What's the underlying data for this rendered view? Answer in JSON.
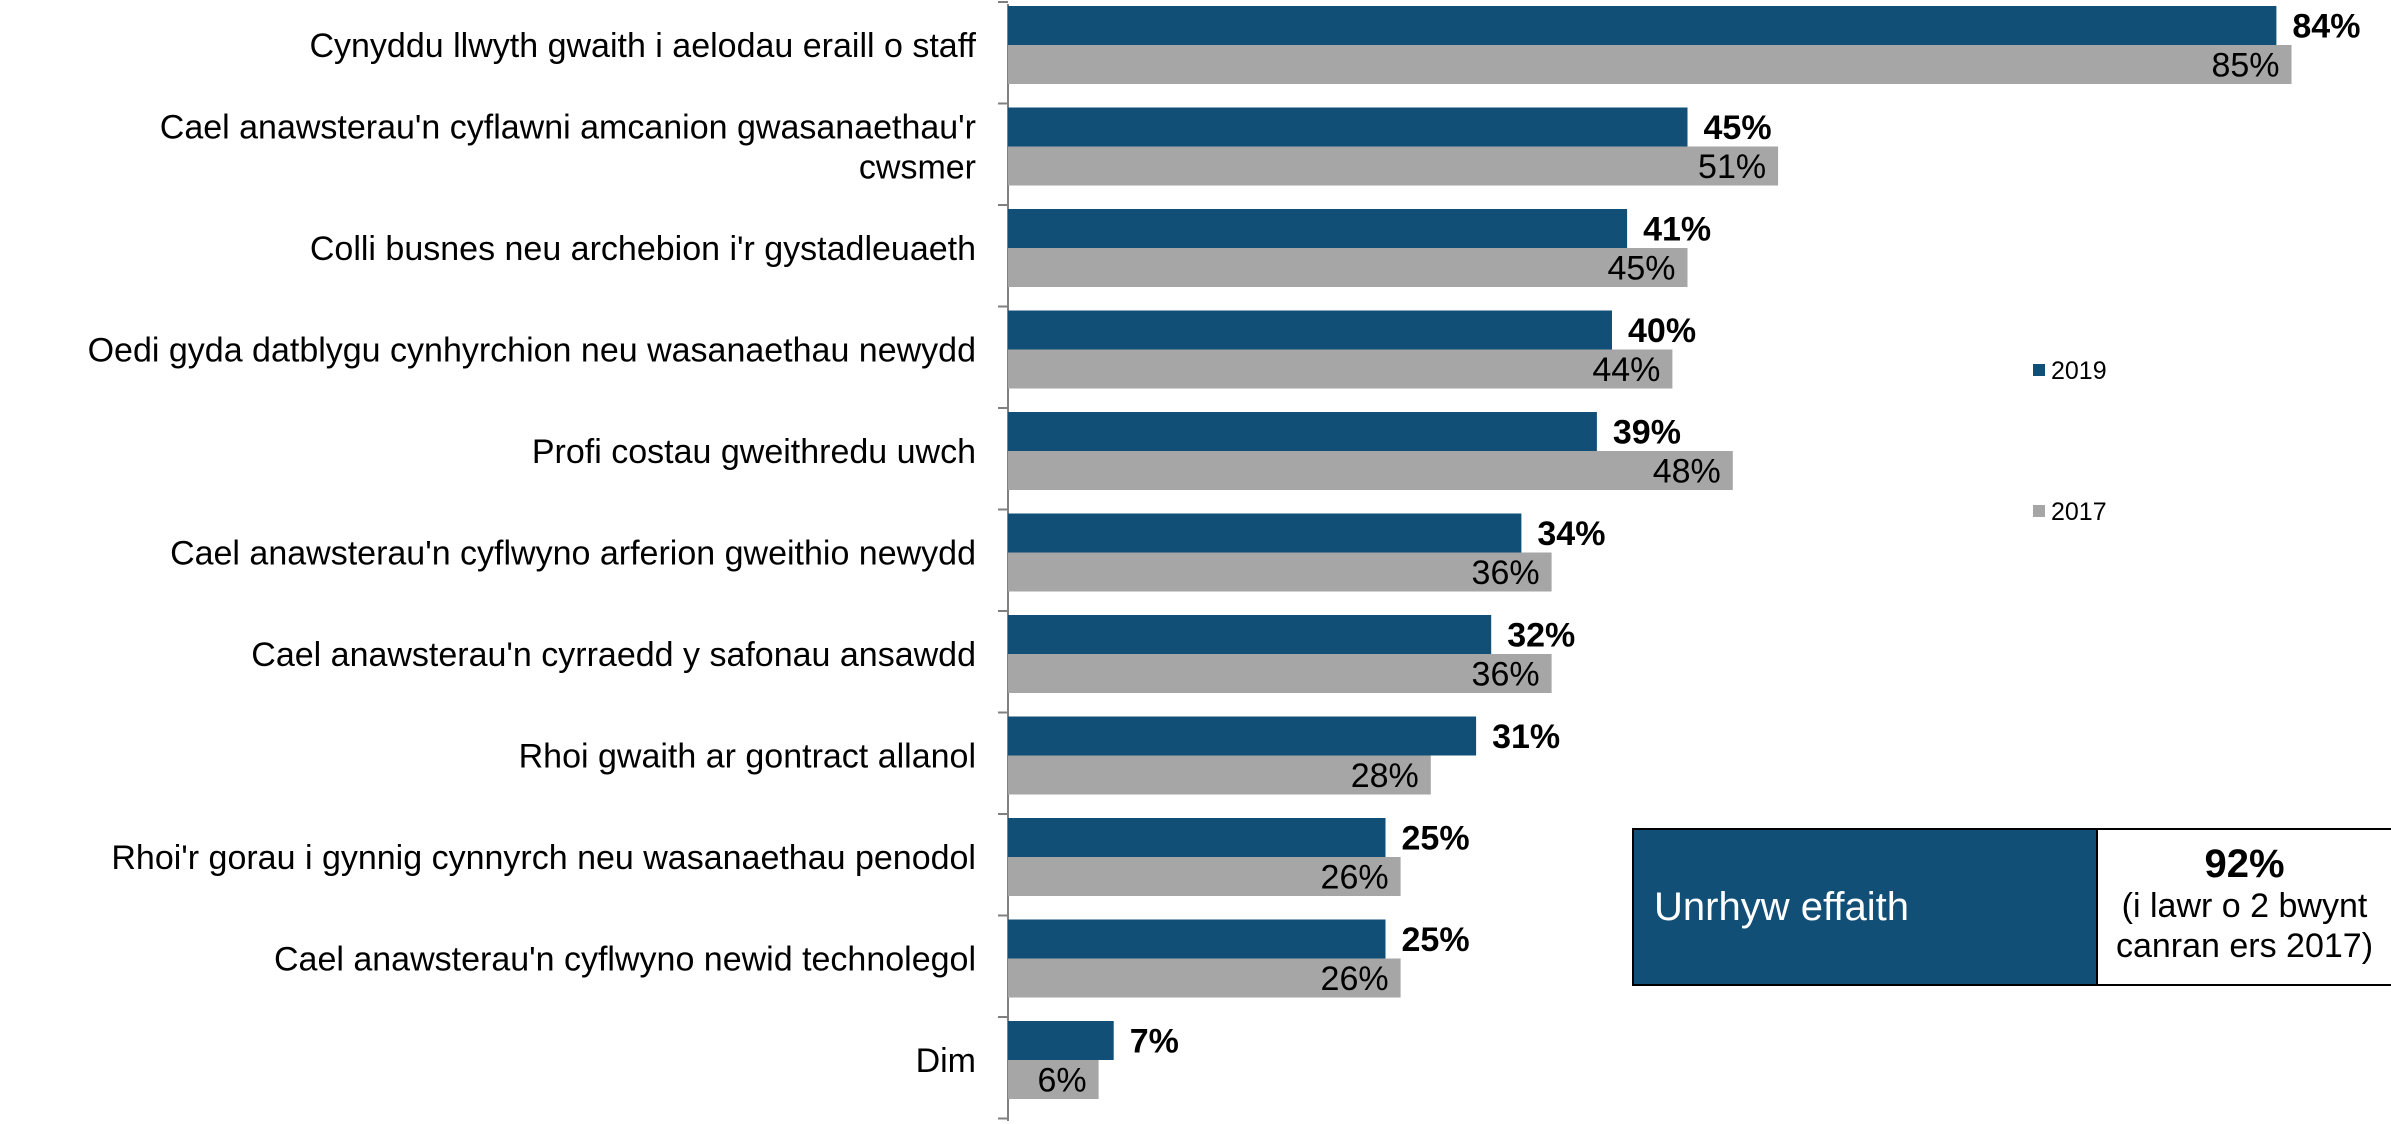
{
  "chart_data": {
    "type": "bar",
    "orientation": "horizontal",
    "categories": [
      [
        "Cynyddu llwyth gwaith i aelodau eraill o staff"
      ],
      [
        "Cael anawsterau'n cyflawni amcanion gwasanaethau'r",
        "cwsmer"
      ],
      [
        "Colli busnes neu archebion i'r gystadleuaeth"
      ],
      [
        "Oedi gyda datblygu cynhyrchion neu wasanaethau newydd"
      ],
      [
        "Profi costau gweithredu uwch"
      ],
      [
        "Cael anawsterau'n cyflwyno arferion gweithio newydd"
      ],
      [
        "Cael anawsterau'n cyrraedd y safonau ansawdd"
      ],
      [
        "Rhoi gwaith ar gontract allanol"
      ],
      [
        "Rhoi'r gorau i gynnig cynnyrch neu wasanaethau penodol"
      ],
      [
        "Cael anawsterau'n cyflwyno newid technolegol"
      ],
      [
        "Dim"
      ]
    ],
    "series": [
      {
        "name": "2019",
        "color": "#124f76",
        "label_weight": "bold",
        "values": [
          84,
          45,
          41,
          40,
          39,
          34,
          32,
          31,
          25,
          25,
          7
        ],
        "labels": [
          "84%",
          "45%",
          "41%",
          "40%",
          "39%",
          "34%",
          "32%",
          "31%",
          "25%",
          "25%",
          "7%"
        ]
      },
      {
        "name": "2017",
        "color": "#a6a6a6",
        "label_weight": "normal",
        "values": [
          85,
          51,
          45,
          44,
          48,
          36,
          36,
          28,
          26,
          26,
          6
        ],
        "labels": [
          "85%",
          "51%",
          "45%",
          "44%",
          "48%",
          "36%",
          "36%",
          "28%",
          "26%",
          "26%",
          "6%"
        ]
      }
    ],
    "xlim": [
      0,
      93
    ],
    "grid": false,
    "legend_position": "right"
  },
  "summary": {
    "label": "Unrhyw effaith",
    "value": "92%",
    "note_lines": [
      "(i lawr o 2 bwynt",
      "canran ers 2017)"
    ]
  }
}
